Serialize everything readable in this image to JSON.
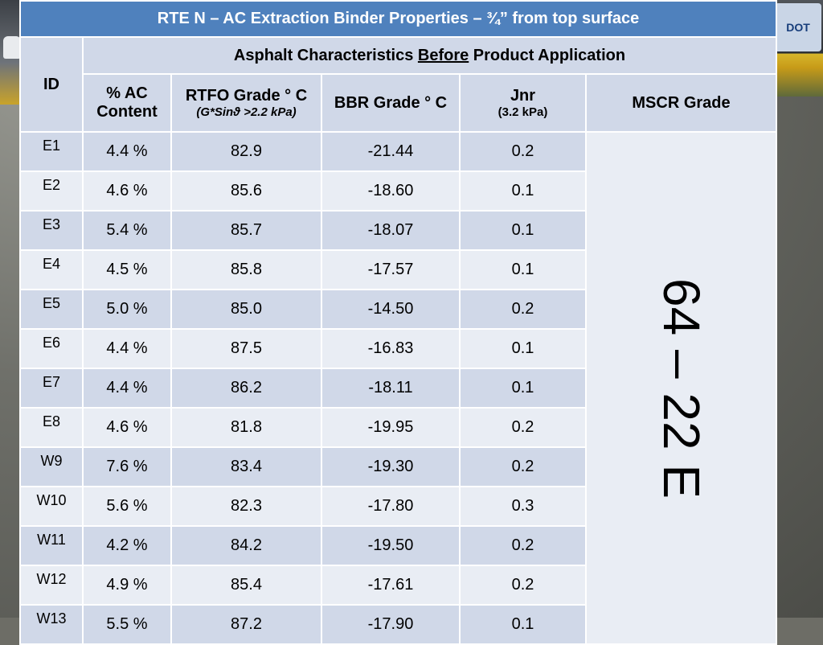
{
  "logo_text": "DOT",
  "table": {
    "title": "RTE N – AC Extraction Binder Properties – ¾” from top surface",
    "group_header": {
      "prefix": "Asphalt Characteristics ",
      "emphasis": "Before",
      "suffix": " Product Application"
    },
    "columns": {
      "id": "ID",
      "ac_line1": "% AC",
      "ac_line2": "Content",
      "rtfo": "RTFO Grade ° C",
      "rtfo_sub": "(G*Sinϑ >2.2 kPa)",
      "bbr": "BBR Grade ° C",
      "jnr": "Jnr",
      "jnr_sub": "(3.2 kPa)",
      "mscr": "MSCR Grade"
    },
    "rows": [
      {
        "id": "E1",
        "ac": "4.4 %",
        "rtfo": "82.9",
        "bbr": "-21.44",
        "jnr": "0.2"
      },
      {
        "id": "E2",
        "ac": "4.6 %",
        "rtfo": "85.6",
        "bbr": "-18.60",
        "jnr": "0.1"
      },
      {
        "id": "E3",
        "ac": "5.4 %",
        "rtfo": "85.7",
        "bbr": "-18.07",
        "jnr": "0.1"
      },
      {
        "id": "E4",
        "ac": "4.5 %",
        "rtfo": "85.8",
        "bbr": "-17.57",
        "jnr": "0.1"
      },
      {
        "id": "E5",
        "ac": "5.0 %",
        "rtfo": "85.0",
        "bbr": "-14.50",
        "jnr": "0.2"
      },
      {
        "id": "E6",
        "ac": "4.4 %",
        "rtfo": "87.5",
        "bbr": "-16.83",
        "jnr": "0.1"
      },
      {
        "id": "E7",
        "ac": "4.4 %",
        "rtfo": "86.2",
        "bbr": "-18.11",
        "jnr": "0.1"
      },
      {
        "id": "E8",
        "ac": "4.6 %",
        "rtfo": "81.8",
        "bbr": "-19.95",
        "jnr": "0.2"
      },
      {
        "id": "W9",
        "ac": "7.6 %",
        "rtfo": "83.4",
        "bbr": "-19.30",
        "jnr": "0.2"
      },
      {
        "id": "W10",
        "ac": "5.6 %",
        "rtfo": "82.3",
        "bbr": "-17.80",
        "jnr": "0.3"
      },
      {
        "id": "W11",
        "ac": "4.2 %",
        "rtfo": "84.2",
        "bbr": "-19.50",
        "jnr": "0.2"
      },
      {
        "id": "W12",
        "ac": "4.9 %",
        "rtfo": "85.4",
        "bbr": "-17.61",
        "jnr": "0.2"
      },
      {
        "id": "W13",
        "ac": "5.5 %",
        "rtfo": "87.2",
        "bbr": "-17.90",
        "jnr": "0.1"
      }
    ],
    "mscr_value": "64 – 22 E"
  },
  "colors": {
    "title_bg": "#4f81bd",
    "header_bg": "#d0d8e8",
    "row_alt_bg": "#e9edf4"
  }
}
